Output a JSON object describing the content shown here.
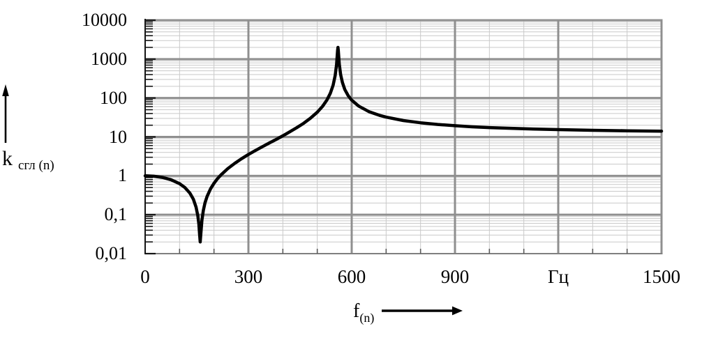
{
  "page": {
    "background": "#ffffff"
  },
  "chart_data": {
    "type": "line",
    "title": "",
    "ylabel_main": "k",
    "ylabel_sub": "сгл (n)",
    "xlabel_main": "f",
    "xlabel_sub": "(n)",
    "x_unit": "Гц",
    "x_axis": {
      "min": 0,
      "max": 1500,
      "major_ticks": [
        0,
        300,
        600,
        900,
        1200,
        1500
      ],
      "tick_labels": [
        "0",
        "300",
        "600",
        "900",
        "Гц",
        "1500"
      ],
      "minor_step_hz": 100
    },
    "y_axis": {
      "scale": "log",
      "min": 0.01,
      "max": 10000,
      "tick_values": [
        10000,
        1000,
        100,
        10,
        1,
        0.1,
        0.01
      ],
      "tick_labels": [
        "10000",
        "1000",
        "100",
        "10",
        "1",
        "0,1",
        "0,01"
      ]
    },
    "grid": {
      "on": true,
      "major_color": "#8f8f8f",
      "minor_color": "#c9c9c9"
    },
    "axis_color": "#151515",
    "curve_color": "#000000",
    "annotations": {
      "notch_frequency_hz": 160,
      "notch_min_value": 0.02,
      "peak_frequency_hz": 560,
      "peak_value": 2000,
      "value_at_fmax": 14.1,
      "value_at_f0": 1.0
    },
    "series": [
      {
        "name": "k сгл (n)",
        "points": [
          [
            0,
            1.0
          ],
          [
            25,
            0.978
          ],
          [
            50,
            0.91
          ],
          [
            75,
            0.795
          ],
          [
            100,
            0.629
          ],
          [
            115,
            0.505
          ],
          [
            130,
            0.36
          ],
          [
            140,
            0.251
          ],
          [
            148,
            0.156
          ],
          [
            153,
            0.094
          ],
          [
            156,
            0.057
          ],
          [
            158,
            0.033
          ],
          [
            160,
            0.02
          ],
          [
            162,
            0.034
          ],
          [
            165,
            0.073
          ],
          [
            169,
            0.129
          ],
          [
            174,
            0.203
          ],
          [
            180,
            0.297
          ],
          [
            190,
            0.464
          ],
          [
            200,
            0.645
          ],
          [
            210,
            0.841
          ],
          [
            220,
            1.05
          ],
          [
            240,
            1.53
          ],
          [
            260,
            2.09
          ],
          [
            280,
            2.75
          ],
          [
            300,
            3.53
          ],
          [
            320,
            4.46
          ],
          [
            340,
            5.57
          ],
          [
            360,
            6.92
          ],
          [
            380,
            8.6
          ],
          [
            400,
            10.7
          ],
          [
            420,
            13.5
          ],
          [
            440,
            17.2
          ],
          [
            460,
            22.3
          ],
          [
            480,
            30.2
          ],
          [
            500,
            43.2
          ],
          [
            515,
            60.7
          ],
          [
            528,
            89
          ],
          [
            538,
            133
          ],
          [
            546,
            214
          ],
          [
            552,
            377
          ],
          [
            556,
            724
          ],
          [
            559,
            1690
          ],
          [
            560,
            2000
          ],
          [
            561,
            1690
          ],
          [
            564,
            741
          ],
          [
            568,
            396
          ],
          [
            573,
            250
          ],
          [
            580,
            166
          ],
          [
            590,
            114
          ],
          [
            600,
            88.2
          ],
          [
            620,
            62.1
          ],
          [
            650,
            44.7
          ],
          [
            680,
            36
          ],
          [
            700,
            32.3
          ],
          [
            750,
            26.4
          ],
          [
            800,
            23.1
          ],
          [
            850,
            20.9
          ],
          [
            900,
            19.4
          ],
          [
            950,
            18.2
          ],
          [
            1000,
            17.4
          ],
          [
            1100,
            16.2
          ],
          [
            1200,
            15.4
          ],
          [
            1300,
            14.8
          ],
          [
            1400,
            14.4
          ],
          [
            1500,
            14.1
          ]
        ]
      }
    ]
  }
}
